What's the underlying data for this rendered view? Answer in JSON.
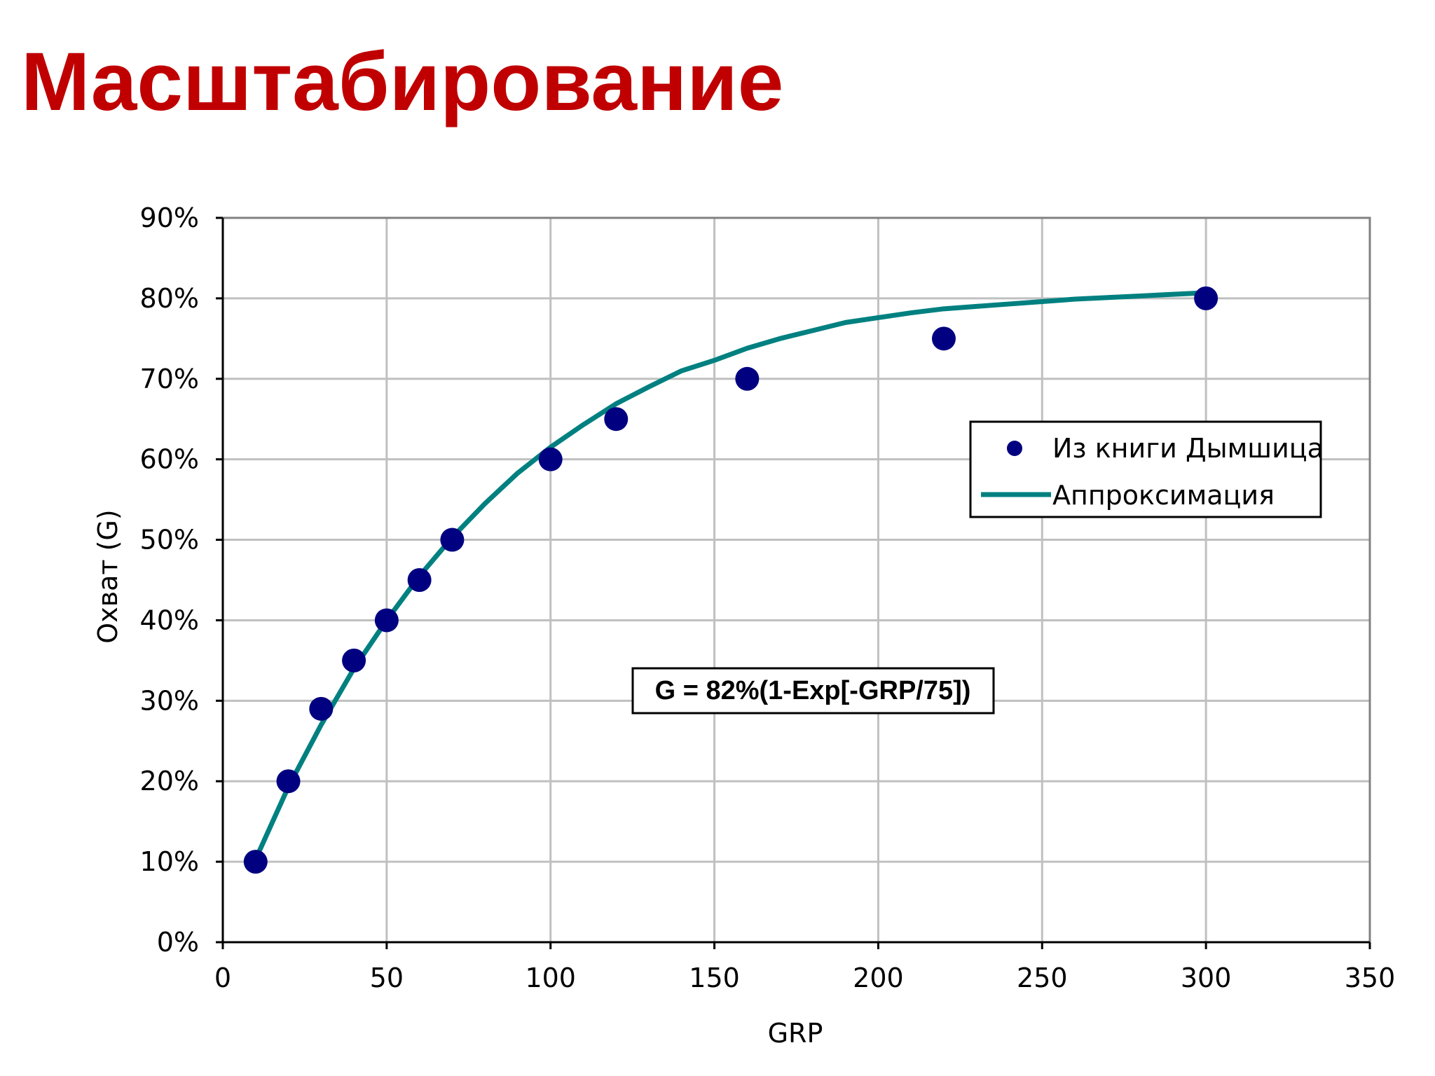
{
  "title": "Масштабирование",
  "chart_data": {
    "type": "scatter",
    "title": "",
    "xlabel": "GRP",
    "ylabel": "Охват (G)",
    "xlim": [
      0,
      350
    ],
    "ylim": [
      0,
      90
    ],
    "x_ticks": [
      0,
      50,
      100,
      150,
      200,
      250,
      300,
      350
    ],
    "y_ticks": [
      "0%",
      "10%",
      "20%",
      "30%",
      "40%",
      "50%",
      "60%",
      "70%",
      "80%",
      "90%"
    ],
    "y_tick_values": [
      0,
      10,
      20,
      30,
      40,
      50,
      60,
      70,
      80,
      90
    ],
    "grid": true,
    "legend_position": "right",
    "series": [
      {
        "name": "Из книги Дымшица",
        "kind": "scatter",
        "color": "#000080",
        "x": [
          10,
          20,
          30,
          40,
          50,
          60,
          70,
          100,
          120,
          160,
          220,
          300
        ],
        "y": [
          10,
          20,
          29,
          35,
          40,
          45,
          50,
          60,
          65,
          70,
          75,
          80
        ]
      },
      {
        "name": "Аппроксимация",
        "kind": "line",
        "color": "#008080",
        "x": [
          10,
          20,
          30,
          40,
          50,
          60,
          70,
          80,
          90,
          100,
          110,
          120,
          130,
          140,
          150,
          160,
          170,
          180,
          190,
          200,
          210,
          220,
          230,
          240,
          250,
          260,
          270,
          280,
          290,
          300
        ],
        "y": [
          10.3,
          19.3,
          27.0,
          34.0,
          40.0,
          45.5,
          50.3,
          54.5,
          58.3,
          61.5,
          64.3,
          66.9,
          69.0,
          71.0,
          72.3,
          73.8,
          75.0,
          76.0,
          77.0,
          77.6,
          78.2,
          78.7,
          79.0,
          79.3,
          79.6,
          79.9,
          80.1,
          80.3,
          80.5,
          80.7
        ]
      }
    ],
    "annotation": "G = 82%(1-Exp[-GRP/75])"
  }
}
